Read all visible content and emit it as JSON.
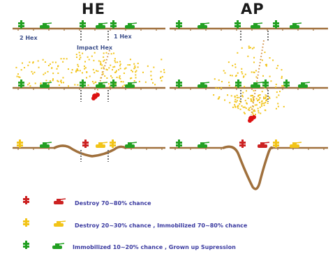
{
  "titles": {
    "he": "HE",
    "ap": "AP"
  },
  "labels": {
    "two_hex": "2 Hex",
    "impact_hex": "Impact Hex",
    "one_hex": "1 Hex"
  },
  "legend": [
    {
      "text": "Destroy 70∼80% chance",
      "color": "#cc2222"
    },
    {
      "text": "Destroy 20∼30% chance , Immobilized 70∼80% chance",
      "color": "#f2c418"
    },
    {
      "text": "Immobilized 10∼20% chance , Grown up Supression",
      "color": "#22a022"
    }
  ],
  "colors": {
    "ground": "#a0703c",
    "hex_marker": "#707070",
    "debris": "#f2c418",
    "trail": "#d08a3c",
    "destroyed": "#cc2222",
    "damaged": "#f2c418",
    "suppressed": "#22a022",
    "burst": "#dd1111"
  }
}
